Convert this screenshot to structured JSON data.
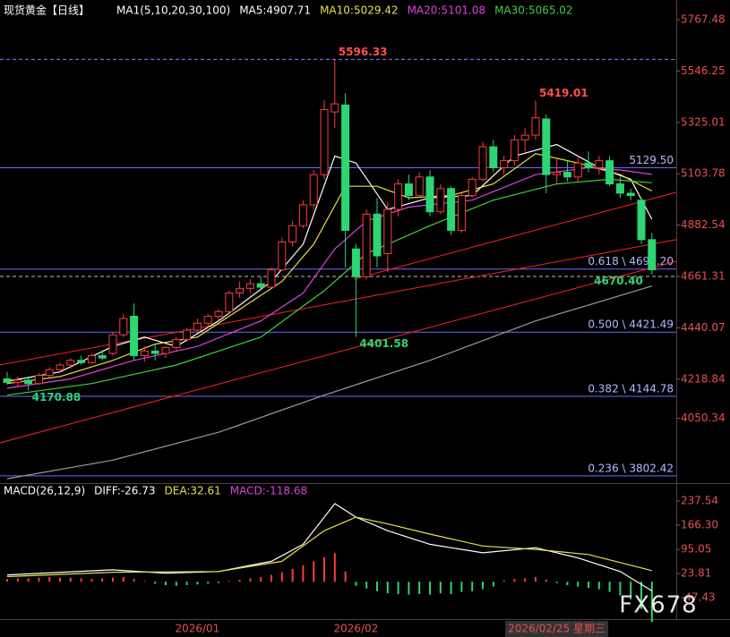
{
  "chart_data": {
    "type": "candlestick",
    "title": "现货黄金【日线】",
    "legend": [
      {
        "text": "MA1(5,10,20,30,100)",
        "color": "#ffffff"
      },
      {
        "text": "MA5:4907.71",
        "color": "#ffffff"
      },
      {
        "text": "MA10:5029.42",
        "color": "#e8e04a"
      },
      {
        "text": "MA20:5101.08",
        "color": "#e040e0"
      },
      {
        "text": "MA30:5065.02",
        "color": "#40d040"
      }
    ],
    "categories": [
      null,
      null,
      null,
      null,
      null,
      null,
      null,
      null,
      null,
      null,
      null,
      null,
      null,
      null,
      null,
      null,
      null,
      null,
      "2026/01",
      null,
      null,
      null,
      null,
      null,
      null,
      null,
      null,
      null,
      null,
      null,
      null,
      null,
      null,
      "2026/02",
      null,
      null,
      null,
      null,
      null,
      null,
      null,
      null,
      null,
      null,
      null,
      null,
      null,
      null,
      null,
      null,
      null,
      null,
      "2026/02/25 星期三",
      null,
      null,
      null,
      null,
      null,
      null,
      null,
      null,
      null
    ],
    "open": [
      4220,
      4205,
      4215,
      4200,
      4235,
      4260,
      4280,
      4300,
      4290,
      4320,
      4330,
      4410,
      4490,
      4320,
      4340,
      4330,
      4355,
      4390,
      4430,
      4460,
      4490,
      4510,
      4590,
      4610,
      4630,
      4615,
      4690,
      4810,
      4880,
      4970,
      5100,
      5370,
      5400,
      4780,
      4660,
      4930,
      4760,
      4950,
      5060,
      5010,
      5090,
      4940,
      5040,
      4860,
      5010,
      5080,
      5220,
      5130,
      5160,
      5250,
      5270,
      5340,
      5100,
      5110,
      5090,
      5150,
      5130,
      5160,
      5060,
      5020,
      4990,
      4820
    ],
    "high": [
      4250,
      4230,
      4225,
      4245,
      4270,
      4290,
      4310,
      4320,
      4330,
      4345,
      4420,
      4500,
      4545,
      4360,
      4370,
      4360,
      4400,
      4440,
      4480,
      4500,
      4520,
      4600,
      4640,
      4650,
      4660,
      4700,
      4830,
      4900,
      4990,
      5120,
      5420,
      5596.33,
      5450,
      4800,
      4950,
      5000,
      4980,
      5080,
      5100,
      5110,
      5120,
      5060,
      5050,
      5020,
      5090,
      5240,
      5250,
      5180,
      5270,
      5300,
      5419.01,
      5360,
      5170,
      5160,
      5180,
      5200,
      5180,
      5180,
      5090,
      5040,
      5000,
      4850
    ],
    "low": [
      4195,
      4185,
      4170.88,
      4195,
      4225,
      4250,
      4265,
      4280,
      4285,
      4300,
      4320,
      4400,
      4300,
      4295,
      4300,
      4310,
      4340,
      4380,
      4420,
      4440,
      4470,
      4500,
      4570,
      4590,
      4600,
      4610,
      4685,
      4790,
      4870,
      4950,
      5080,
      5300,
      4700,
      4401.58,
      4650,
      4700,
      4680,
      4920,
      4990,
      5000,
      4920,
      4930,
      4840,
      4850,
      5000,
      5070,
      5110,
      5100,
      5140,
      5200,
      5250,
      5020,
      5060,
      5070,
      5070,
      5110,
      5100,
      5050,
      5000,
      4990,
      4800,
      4670.4
    ],
    "close": [
      4205,
      4215,
      4200,
      4235,
      4260,
      4280,
      4300,
      4290,
      4320,
      4310,
      4410,
      4480,
      4320,
      4340,
      4330,
      4355,
      4390,
      4430,
      4460,
      4490,
      4510,
      4590,
      4610,
      4630,
      4615,
      4690,
      4810,
      4880,
      4970,
      5100,
      5380,
      5405,
      4860,
      4660,
      4930,
      4750,
      4950,
      5060,
      5010,
      5090,
      4940,
      5040,
      4860,
      5010,
      5080,
      5220,
      5130,
      5160,
      5250,
      5270,
      5345,
      5100,
      5110,
      5090,
      5150,
      5130,
      5160,
      5060,
      5020,
      5010,
      4820,
      4690
    ],
    "up_color": "#ff3b3b",
    "down_color": "#2ed573",
    "ylim": [
      3771.1,
      5852.3
    ],
    "yticks": [
      5767.48,
      5546.25,
      5325.01,
      5103.78,
      4882.54,
      4661.31,
      4440.07,
      4218.84,
      4050.34
    ],
    "ma": [
      {
        "color": "#ffffff",
        "x": [
          0,
          5,
          10,
          13,
          16,
          20,
          25,
          28,
          31,
          33,
          36,
          40,
          44,
          48,
          52,
          56,
          59,
          61
        ],
        "values": [
          4210,
          4250,
          4360,
          4400,
          4360,
          4470,
          4640,
          4800,
          5180,
          5150,
          4950,
          5000,
          5010,
          5180,
          5230,
          5130,
          5080,
          4907.71
        ]
      },
      {
        "color": "#e8e04a",
        "x": [
          0,
          5,
          10,
          14,
          18,
          22,
          26,
          29,
          32,
          35,
          38,
          42,
          46,
          50,
          54,
          58,
          61
        ],
        "values": [
          4200,
          4230,
          4300,
          4370,
          4400,
          4520,
          4640,
          4800,
          5050,
          5050,
          5000,
          5010,
          5060,
          5190,
          5150,
          5100,
          5029.42
        ]
      },
      {
        "color": "#e040e0",
        "x": [
          0,
          6,
          12,
          18,
          24,
          28,
          31,
          34,
          38,
          44,
          50,
          55,
          58,
          61
        ],
        "values": [
          4180,
          4220,
          4300,
          4360,
          4470,
          4590,
          4780,
          4900,
          4960,
          4990,
          5100,
          5130,
          5120,
          5101.08
        ]
      },
      {
        "color": "#40d040",
        "x": [
          0,
          8,
          16,
          24,
          30,
          34,
          40,
          46,
          52,
          57,
          61
        ],
        "values": [
          4150,
          4200,
          4280,
          4400,
          4600,
          4760,
          4880,
          4990,
          5060,
          5080,
          5065.02
        ]
      },
      {
        "color": "#9a9a9a",
        "x": [
          0,
          10,
          20,
          30,
          40,
          50,
          61
        ],
        "values": [
          3790,
          3870,
          3990,
          4150,
          4300,
          4470,
          4620
        ]
      }
    ],
    "trendlines": [
      {
        "color": "#ff2020",
        "x": [
          -0.7,
          63.3
        ],
        "y": [
          3944.5,
          4726.9
        ]
      },
      {
        "color": "#ff2020",
        "x": [
          -0.7,
          63.3
        ],
        "y": [
          4280,
          4820
        ]
      },
      {
        "color": "#ff2020",
        "x": [
          32.8,
          63.3
        ],
        "y": [
          4650,
          5024
        ]
      }
    ],
    "hlines": [
      {
        "value": 5596.33,
        "style": "dashed",
        "color": "#8080ff"
      },
      {
        "value": 5129.5,
        "label": "5129.50",
        "color": "#6a6aff"
      },
      {
        "value": 4693.2,
        "label": "0.618 \\ 4693.20",
        "color": "#6a6aff"
      },
      {
        "value": 4661.31,
        "style": "dashed",
        "color": "#bbbbbb"
      },
      {
        "value": 4421.49,
        "label": "0.500 \\ 4421.49",
        "color": "#6a6aff"
      },
      {
        "value": 4144.78,
        "label": "0.382 \\ 4144.78",
        "color": "#6a6aff"
      },
      {
        "value": 3802.42,
        "label": "0.236 \\ 3802.42",
        "color": "#6a6aff"
      }
    ],
    "annotations": [
      {
        "candle": 31,
        "value": 5596.33,
        "label": "5596.33"
      },
      {
        "candle": 50,
        "value": 5419.01,
        "label": "5419.01"
      },
      {
        "candle": 33,
        "value": 4401.58,
        "label": "4401.58"
      },
      {
        "candle": 2,
        "value": 4170.88,
        "label": "4170.88"
      },
      {
        "candle": 61,
        "value": 4670.4,
        "label": "4670.40"
      }
    ],
    "macd": {
      "legend": [
        {
          "text": "MACD(26,12,9)",
          "color": "#ffffff"
        },
        {
          "text": "DIFF:-26.73",
          "color": "#ffffff"
        },
        {
          "text": "DEA:32.61",
          "color": "#e8e04a"
        },
        {
          "text": "MACD:-118.68",
          "color": "#e040e0"
        }
      ],
      "ylim": [
        -110,
        277
      ],
      "yticks": [
        237.54,
        {
          "value": 166.3,
          "label": "166.30"
        },
        95.05,
        23.81,
        -47.43
      ],
      "dif": {
        "color": "#ffffff",
        "x": [
          0,
          10,
          15,
          20,
          25,
          28,
          31,
          33,
          36,
          40,
          45,
          50,
          54,
          58,
          61
        ],
        "values": [
          20,
          35,
          25,
          30,
          60,
          110,
          230,
          190,
          150,
          110,
          85,
          100,
          70,
          30,
          -26.73
        ]
      },
      "dea": {
        "color": "#e8e04a",
        "x": [
          0,
          10,
          20,
          26,
          30,
          33,
          36,
          40,
          45,
          50,
          55,
          61
        ],
        "values": [
          15,
          28,
          30,
          60,
          150,
          190,
          170,
          140,
          105,
          95,
          80,
          32.61
        ]
      },
      "hist": [
        8,
        10,
        10,
        12,
        14,
        12,
        12,
        10,
        8,
        10,
        12,
        14,
        8,
        2,
        -6,
        -10,
        -12,
        -10,
        -8,
        -6,
        -4,
        2,
        6,
        10,
        14,
        20,
        28,
        38,
        48,
        60,
        72,
        84,
        30,
        -12,
        -20,
        -28,
        -34,
        -36,
        -38,
        -36,
        -38,
        -34,
        -36,
        -30,
        -28,
        -22,
        -14,
        4,
        8,
        10,
        14,
        6,
        -4,
        -10,
        -14,
        -18,
        -22,
        -30,
        -40,
        -52,
        -80,
        -118.68
      ]
    }
  },
  "watermark": "FX678"
}
